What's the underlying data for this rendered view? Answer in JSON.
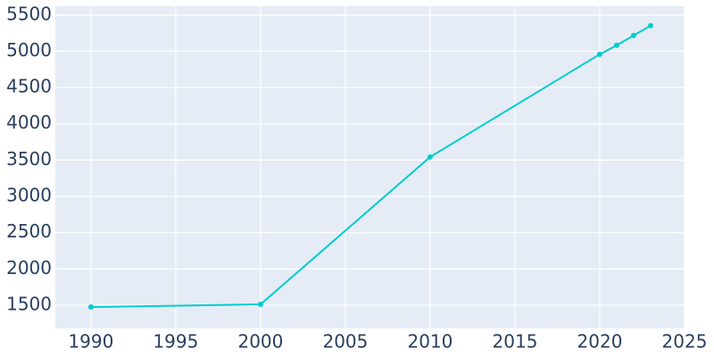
{
  "chart_data": {
    "type": "line",
    "x": [
      1990,
      2000,
      2010,
      2020,
      2021,
      2022,
      2023
    ],
    "series": [
      {
        "color": "#00cccc",
        "values": [
          1475,
          1512,
          3543,
          4958,
          5082,
          5217,
          5352
        ]
      }
    ],
    "xlim": [
      1987.9,
      2025
    ],
    "xticks": [
      1990,
      1995,
      2000,
      2005,
      2010,
      2015,
      2020,
      2025
    ],
    "ylim": [
      1180,
      5620
    ],
    "yticks": [
      1500,
      2000,
      2500,
      3000,
      3500,
      4000,
      4500,
      5000,
      5500
    ],
    "grid": true
  }
}
